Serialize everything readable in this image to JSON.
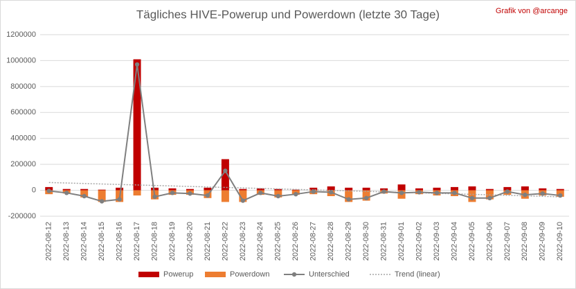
{
  "chart_data": {
    "type": "bar",
    "title": "Tägliches HIVE-Powerup und Powerdown (letzte 30 Tage)",
    "credit": "Grafik von @arcange",
    "categories": [
      "2022-08-12",
      "2022-08-13",
      "2022-08-14",
      "2022-08-15",
      "2022-08-16",
      "2022-08-17",
      "2022-08-18",
      "2022-08-19",
      "2022-08-20",
      "2022-08-21",
      "2022-08-22",
      "2022-08-23",
      "2022-08-24",
      "2022-08-25",
      "2022-08-26",
      "2022-08-27",
      "2022-08-28",
      "2022-08-29",
      "2022-08-30",
      "2022-08-31",
      "2022-09-01",
      "2022-09-02",
      "2022-09-03",
      "2022-09-04",
      "2022-09-05",
      "2022-09-06",
      "2022-09-07",
      "2022-09-08",
      "2022-09-09",
      "2022-09-10"
    ],
    "series": [
      {
        "name": "Powerup",
        "kind": "bar",
        "color": "#c00000",
        "values": [
          25000,
          10000,
          10000,
          5000,
          20000,
          1010000,
          20000,
          15000,
          10000,
          20000,
          240000,
          10000,
          15000,
          10000,
          5000,
          20000,
          30000,
          20000,
          20000,
          15000,
          45000,
          15000,
          20000,
          25000,
          30000,
          10000,
          25000,
          30000,
          15000,
          10000
        ]
      },
      {
        "name": "Powerdown",
        "kind": "bar",
        "color": "#ed7d31",
        "values": [
          -30000,
          -25000,
          -55000,
          -90000,
          -90000,
          -40000,
          -70000,
          -35000,
          -35000,
          -60000,
          -90000,
          -90000,
          -35000,
          -55000,
          -35000,
          -30000,
          -45000,
          -90000,
          -80000,
          -25000,
          -65000,
          -30000,
          -40000,
          -45000,
          -90000,
          -70000,
          -35000,
          -65000,
          -40000,
          -50000
        ]
      },
      {
        "name": "Unterschied",
        "kind": "line",
        "color": "#7f7f7f",
        "values": [
          -5000,
          -20000,
          -45000,
          -85000,
          -70000,
          970000,
          -50000,
          -20000,
          -25000,
          -40000,
          150000,
          -80000,
          -20000,
          -45000,
          -30000,
          -10000,
          -15000,
          -70000,
          -60000,
          -10000,
          -20000,
          -15000,
          -20000,
          -20000,
          -60000,
          -60000,
          -10000,
          -35000,
          -25000,
          -40000
        ]
      },
      {
        "name": "Trend (linear)",
        "kind": "trend",
        "color": "#a6a6a6",
        "values": [
          60000,
          56200,
          52400,
          48600,
          44800,
          41000,
          37200,
          33400,
          29600,
          25800,
          22000,
          18200,
          14400,
          10600,
          6800,
          3000,
          -800,
          -4600,
          -8400,
          -12200,
          -16000,
          -19800,
          -23600,
          -27400,
          -31200,
          -35000,
          -38800,
          -42600,
          -46400,
          -50200
        ]
      }
    ],
    "ylim": [
      -200000,
      1200000
    ],
    "yticks": [
      -200000,
      0,
      200000,
      400000,
      600000,
      800000,
      1000000,
      1200000
    ],
    "grid": true,
    "legend": "bottom"
  }
}
